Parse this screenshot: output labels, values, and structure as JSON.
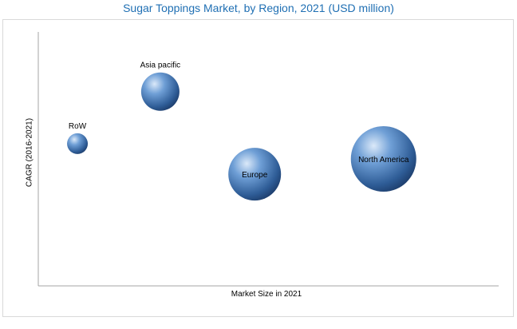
{
  "chart_data": {
    "type": "scatter",
    "title": "Sugar Toppings Market, by Region, 2021 (USD million)",
    "xlabel": "Market Size in 2021",
    "ylabel": "CAGR (2016-2021)",
    "xlim": [
      0,
      100
    ],
    "ylim": [
      0,
      100
    ],
    "grid": false,
    "legend": "none",
    "axis_color": "#a6a6a6",
    "bubble_color": "#4f81bd",
    "points": [
      {
        "label": "RoW",
        "x": 8.5,
        "y": 56,
        "size": 13,
        "label_position": "above"
      },
      {
        "label": "Asia pacific",
        "x": 26.5,
        "y": 76.5,
        "size": 24,
        "label_position": "above"
      },
      {
        "label": "Europe",
        "x": 47,
        "y": 44,
        "size": 33,
        "label_position": "center"
      },
      {
        "label": "North America",
        "x": 75,
        "y": 50,
        "size": 41,
        "label_position": "center"
      }
    ]
  }
}
